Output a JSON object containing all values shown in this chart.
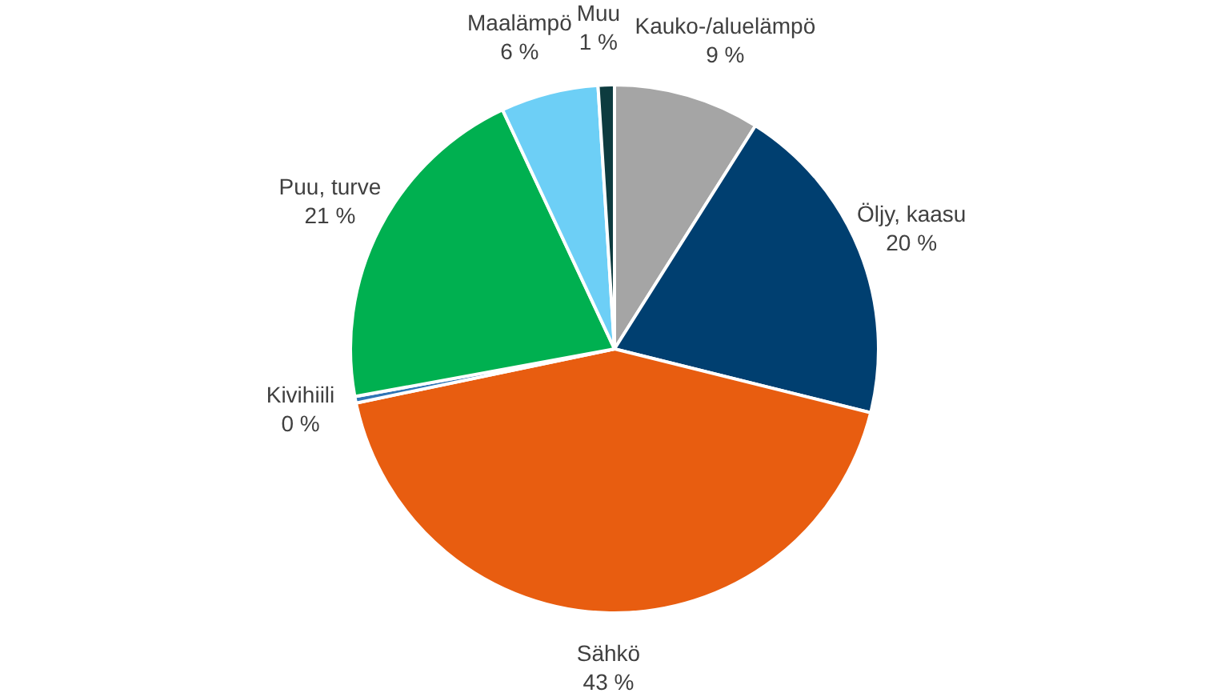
{
  "chart_data": {
    "type": "pie",
    "categories": [
      "Kauko-/aluelämpö",
      "Öljy, kaasu",
      "Sähkö",
      "Kivihiili",
      "Puu, turve",
      "Maalämpö",
      "Muu"
    ],
    "values": [
      9,
      20,
      43,
      0.4,
      21,
      6,
      1
    ],
    "value_labels": [
      "9 %",
      "20 %",
      "43 %",
      "0 %",
      "21 %",
      "6 %",
      "1 %"
    ],
    "colors": [
      "#a5a5a5",
      "#003f70",
      "#e85d10",
      "#2e75b6",
      "#00b050",
      "#6dcff6",
      "#0d3b3f"
    ]
  }
}
